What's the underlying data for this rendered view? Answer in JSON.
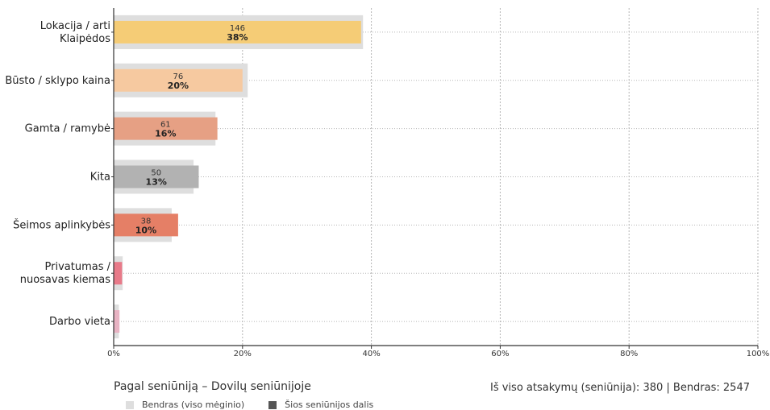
{
  "colors": {
    "baseline": "#dedede",
    "axis": "#333333",
    "grid": "#b5b5b5",
    "legend_section": "#555555"
  },
  "chart_data": {
    "type": "bar",
    "orientation": "horizontal",
    "title": "Pagal seniūniją – Dovilų seniūnijoje",
    "categories": [
      [
        "Lokacija / arti",
        "Klaipėdos"
      ],
      [
        "Būsto / sklypo kaina"
      ],
      [
        "Gamta / ramybė"
      ],
      [
        "Kita"
      ],
      [
        "Šeimos aplinkybės"
      ],
      [
        "Privatumas /",
        "nuosavas kiemas"
      ],
      [
        "Darbo vieta"
      ]
    ],
    "series": [
      {
        "name": "Bendras (viso mėginio)",
        "values": [
          38.7,
          20.8,
          15.8,
          12.4,
          9.0,
          1.4,
          0.8
        ]
      },
      {
        "name": "Šios seniūnijos dalis",
        "values": [
          38.4,
          20.0,
          16.1,
          13.2,
          10.0,
          1.3,
          0.9
        ],
        "counts": [
          "146",
          "76",
          "61",
          "50",
          "38",
          "",
          ""
        ],
        "pct_labels": [
          "38%",
          "20%",
          "16%",
          "13%",
          "10%",
          "",
          ""
        ],
        "colors": [
          "#f5cc76",
          "#f6c9a0",
          "#e6a084",
          "#b2b2b2",
          "#e57f66",
          "#e87a89",
          "#e8b3c3"
        ]
      }
    ],
    "xlim": [
      0,
      100
    ],
    "xticks": [
      "0%",
      "20%",
      "40%",
      "60%",
      "80%",
      "100%"
    ],
    "grid": true,
    "legend_position": "bottom-left"
  },
  "footer": {
    "title": "Pagal seniūniją – Dovilų seniūnijoje",
    "totals": "Iš viso atsakymų (seniūnija): 380  |  Bendras: 2547"
  },
  "legend": {
    "baseline_label": "Bendras (viso mėginio)",
    "section_label": "Šios seniūnijos dalis"
  }
}
